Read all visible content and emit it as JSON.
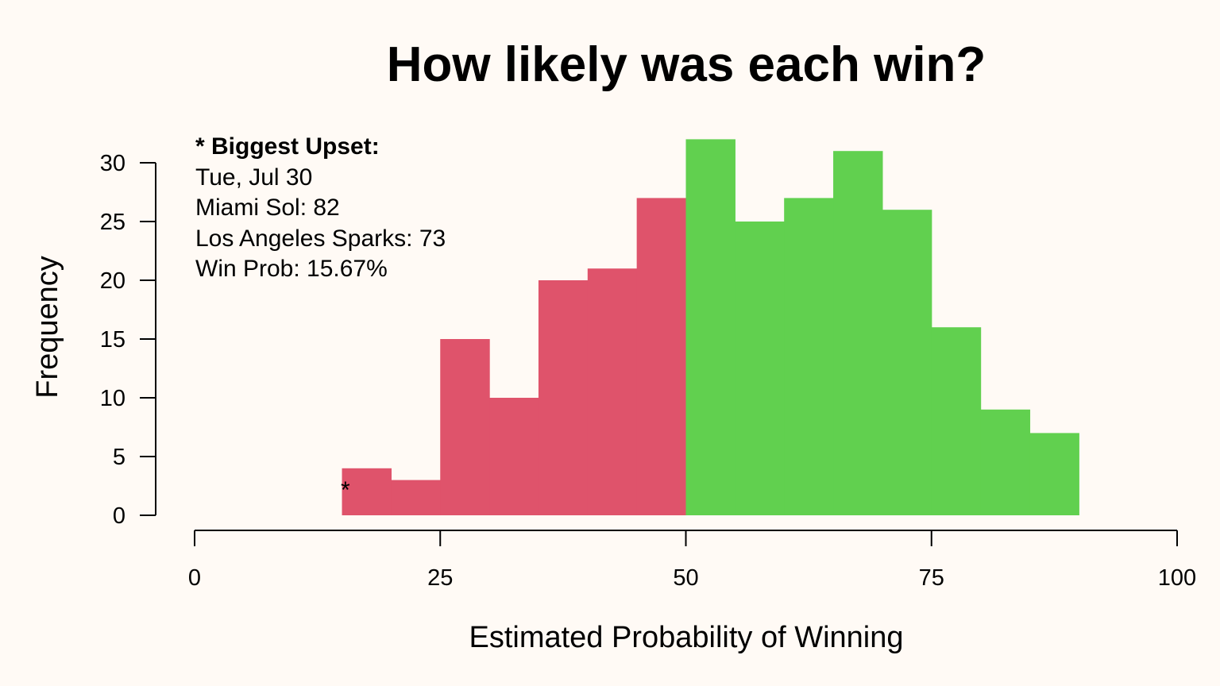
{
  "chart_data": {
    "type": "bar",
    "title": "How likely was each win?",
    "xlabel": "Estimated Probability of Winning",
    "ylabel": "Frequency",
    "xlim": [
      0,
      100
    ],
    "ylim": [
      0,
      30
    ],
    "x_ticks": [
      0,
      25,
      50,
      75,
      100
    ],
    "y_ticks": [
      0,
      5,
      10,
      15,
      20,
      25,
      30
    ],
    "grid": false,
    "bin_width": 5,
    "bins": [
      {
        "start": 15,
        "end": 20,
        "value": 4
      },
      {
        "start": 20,
        "end": 25,
        "value": 3
      },
      {
        "start": 25,
        "end": 30,
        "value": 15
      },
      {
        "start": 30,
        "end": 35,
        "value": 10
      },
      {
        "start": 35,
        "end": 40,
        "value": 20
      },
      {
        "start": 40,
        "end": 45,
        "value": 21
      },
      {
        "start": 45,
        "end": 50,
        "value": 27
      },
      {
        "start": 50,
        "end": 55,
        "value": 32
      },
      {
        "start": 55,
        "end": 60,
        "value": 25
      },
      {
        "start": 60,
        "end": 65,
        "value": 27
      },
      {
        "start": 65,
        "end": 70,
        "value": 31
      },
      {
        "start": 70,
        "end": 75,
        "value": 26
      },
      {
        "start": 75,
        "end": 80,
        "value": 16
      },
      {
        "start": 80,
        "end": 85,
        "value": 9
      },
      {
        "start": 85,
        "end": 90,
        "value": 7
      }
    ],
    "colors": {
      "below_50": "#df536b",
      "above_50": "#61d04f"
    },
    "marker": {
      "symbol": "*",
      "x": 15.67,
      "y": 2.3
    },
    "annotation": {
      "heading": "* Biggest Upset:",
      "lines": [
        "Tue, Jul 30",
        "Miami Sol: 82",
        "Los Angeles Sparks: 73",
        "Win Prob: 15.67%"
      ]
    }
  }
}
